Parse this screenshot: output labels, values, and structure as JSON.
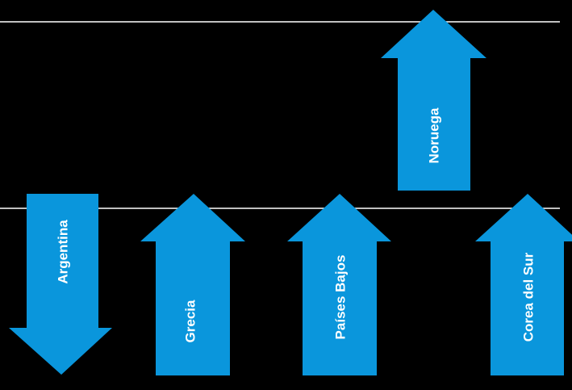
{
  "colors": {
    "background": "#000000",
    "arrow_fill": "#0a96dc",
    "label_text": "#ffffff",
    "guide_line": "#ffffff"
  },
  "arrows": [
    {
      "label": "Argentina",
      "direction": "down"
    },
    {
      "label": "Grecia",
      "direction": "up"
    },
    {
      "label": "Países Bajos",
      "direction": "up"
    },
    {
      "label": "Noruega",
      "direction": "up"
    },
    {
      "label": "Corea del Sur",
      "direction": "up"
    }
  ]
}
